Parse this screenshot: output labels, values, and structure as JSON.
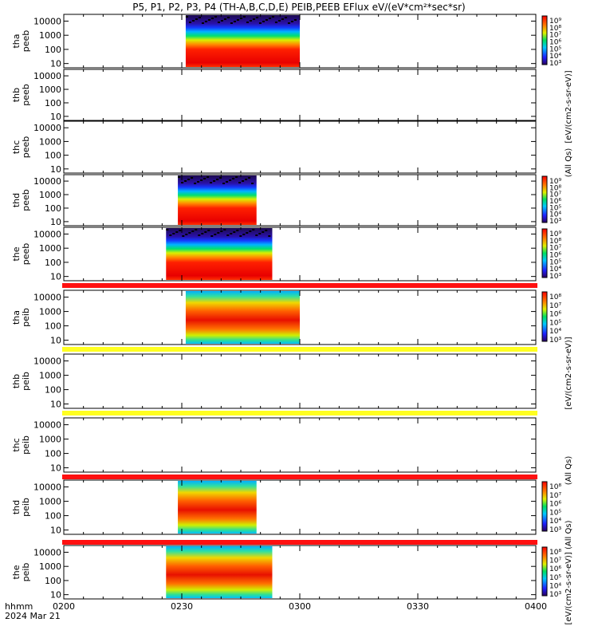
{
  "chart_data": {
    "type": "heatmap",
    "title": "P5, P1, P2, P3, P4 (TH-A,B,C,D,E) PEIB,PEEB EFlux eV/(eV*cm²*sec*sr)",
    "x_axis": {
      "range": [
        "0200",
        "0400"
      ],
      "tick_labels": [
        "0200",
        "0230",
        "0300",
        "0330",
        "0400"
      ],
      "corner_labels": [
        "hhmm",
        "2024 Mar 21"
      ]
    },
    "colorbar_labels": {
      "electron_top": "[eV/(cm2-s-sr-eV)]",
      "electron_mid": "(All Qs)",
      "ion_mid": "[eV/(cm2-s-sr-eV)]",
      "ion_bottom": "(All Qs)",
      "overlapped": "[eV/(cm2-s-sr-eV)] (All Qs)"
    },
    "panels": [
      {
        "ylabel": [
          "tha",
          "peeb"
        ],
        "yticks": [
          "10",
          "100",
          "1000",
          "10000"
        ],
        "scale": "log",
        "data_start": "0231",
        "data_end": "0300",
        "spectrum": "electron",
        "colorbar": [
          "10⁹",
          "10⁸",
          "10⁷",
          "10⁶",
          "10⁵",
          "10⁴",
          "10³"
        ]
      },
      {
        "ylabel": [
          "thb",
          "peeb"
        ],
        "yticks": [
          "10",
          "100",
          "1000",
          "10000"
        ],
        "scale": "log",
        "spectrum": "empty"
      },
      {
        "ylabel": [
          "thc",
          "peeb"
        ],
        "yticks": [
          "10",
          "100",
          "1000",
          "10000"
        ],
        "scale": "log",
        "spectrum": "empty"
      },
      {
        "ylabel": [
          "thd",
          "peeb"
        ],
        "yticks": [
          "10",
          "100",
          "1000",
          "10000"
        ],
        "scale": "log",
        "data_start": "0229",
        "data_end": "0249",
        "spectrum": "electron",
        "colorbar": [
          "10⁹",
          "10⁸",
          "10⁷",
          "10⁶",
          "10⁵",
          "10⁴",
          "10³"
        ]
      },
      {
        "ylabel": [
          "the",
          "peeb"
        ],
        "yticks": [
          "10",
          "100",
          "1000",
          "10000"
        ],
        "scale": "log",
        "data_start": "0226",
        "data_end": "0253",
        "spectrum": "electron",
        "colorbar": [
          "10⁹",
          "10⁸",
          "10⁷",
          "10⁶",
          "10⁵",
          "10⁴",
          "10³"
        ]
      },
      {
        "ylabel": [
          "tha",
          "peib"
        ],
        "yticks": [
          "10",
          "100",
          "1000",
          "10000"
        ],
        "scale": "log",
        "data_start": "0231",
        "data_end": "0300",
        "spectrum": "ion",
        "colorbar": [
          "10⁸",
          "10⁷",
          "10⁶",
          "10⁵",
          "10⁴",
          "10³"
        ],
        "bar_color": "#ff1010"
      },
      {
        "ylabel": [
          "thb",
          "peib"
        ],
        "yticks": [
          "10",
          "100",
          "1000",
          "10000"
        ],
        "scale": "log",
        "spectrum": "empty",
        "bar_color": "#ffff20"
      },
      {
        "ylabel": [
          "thc",
          "peib"
        ],
        "yticks": [
          "10",
          "100",
          "1000",
          "10000"
        ],
        "scale": "log",
        "spectrum": "empty",
        "bar_color": "#ffff20"
      },
      {
        "ylabel": [
          "thd",
          "peib"
        ],
        "yticks": [
          "10",
          "100",
          "1000",
          "10000"
        ],
        "scale": "log",
        "data_start": "0229",
        "data_end": "0249",
        "spectrum": "ion",
        "colorbar": [
          "10⁸",
          "10⁷",
          "10⁶",
          "10⁵",
          "10⁴",
          "10³"
        ],
        "bar_color": "#ff1010"
      },
      {
        "ylabel": [
          "the",
          "peib"
        ],
        "yticks": [
          "10",
          "100",
          "1000",
          "10000"
        ],
        "scale": "log",
        "data_start": "0226",
        "data_end": "0253",
        "spectrum": "ion",
        "colorbar": [
          "10⁸",
          "10⁷",
          "10⁶",
          "10⁵",
          "10⁴",
          "10³"
        ],
        "bar_color": "#ff1010"
      }
    ]
  },
  "colors": {
    "quality_bar_red": "#ff1010",
    "quality_bar_yellow": "#ffff20"
  }
}
